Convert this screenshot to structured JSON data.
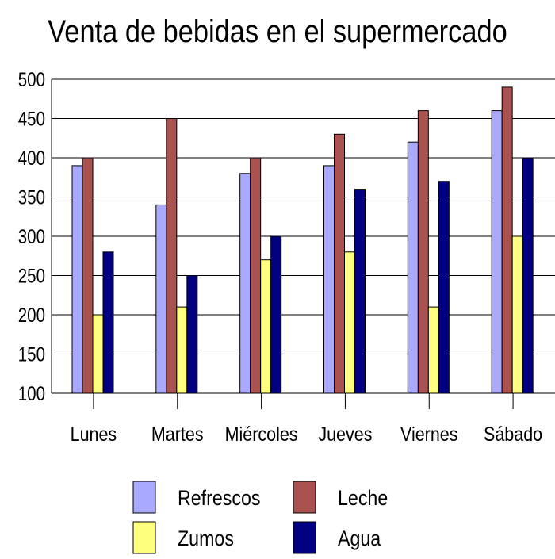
{
  "chart_data": {
    "type": "bar",
    "title": "Venta de bebidas en el supermercado",
    "xlabel": "",
    "ylabel": "",
    "categories": [
      "Lunes",
      "Martes",
      "Miércoles",
      "Jueves",
      "Viernes",
      "Sábado"
    ],
    "series": [
      {
        "name": "Refrescos",
        "color": "#a9a9ff",
        "values": [
          390,
          340,
          380,
          390,
          420,
          460
        ]
      },
      {
        "name": "Zumos",
        "color": "#ffff80",
        "values": [
          200,
          210,
          270,
          280,
          210,
          300
        ]
      },
      {
        "name": "Leche",
        "color": "#a9524f",
        "values": [
          400,
          450,
          400,
          430,
          460,
          490
        ]
      },
      {
        "name": "Agua",
        "color": "#000080",
        "values": [
          280,
          250,
          300,
          360,
          370,
          400
        ]
      }
    ],
    "ylim": [
      100,
      500
    ],
    "yticks": [
      "500",
      "450",
      "400",
      "350",
      "300",
      "250",
      "200",
      "150",
      "100"
    ],
    "grid": true,
    "legend_position": "bottom"
  }
}
